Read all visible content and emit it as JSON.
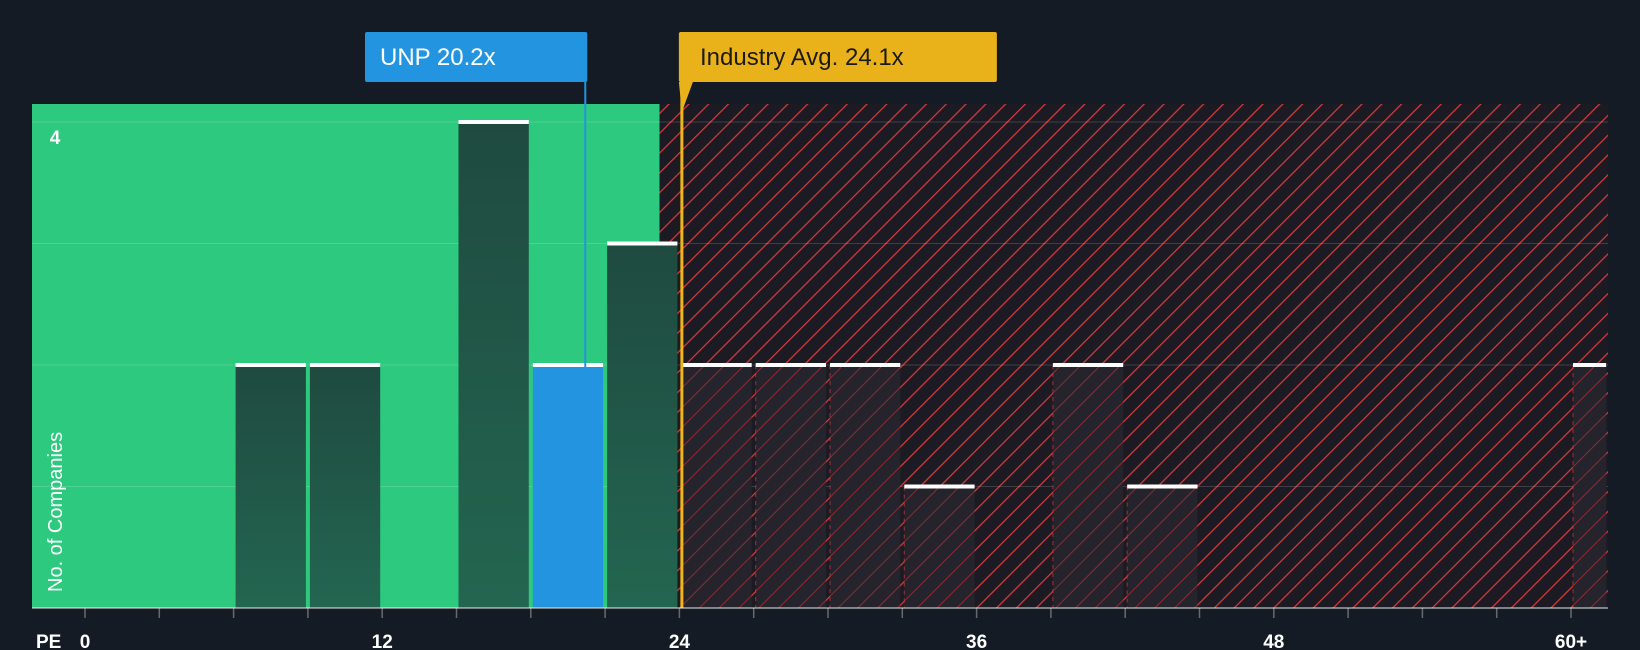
{
  "chart_data": {
    "type": "bar",
    "title": "",
    "xlabel": "PE",
    "ylabel": "No. of Companies",
    "x_ticks": [
      "0",
      "12",
      "24",
      "36",
      "48",
      "60+"
    ],
    "x_tick_values": [
      0,
      12,
      24,
      36,
      48,
      60
    ],
    "x_range": [
      -2,
      61.5
    ],
    "y_ticks": [
      "4"
    ],
    "y_tick_values": [
      4
    ],
    "y_gridlines": [
      1,
      2,
      3,
      4
    ],
    "ylim": [
      0,
      4.15
    ],
    "bin_width": 3,
    "bins": [
      {
        "start": 6,
        "end": 9,
        "value": 2
      },
      {
        "start": 9,
        "end": 12,
        "value": 2
      },
      {
        "start": 15,
        "end": 18,
        "value": 4
      },
      {
        "start": 18,
        "end": 21,
        "value": 2,
        "highlight": true
      },
      {
        "start": 21,
        "end": 24,
        "value": 3
      },
      {
        "start": 24,
        "end": 27,
        "value": 2
      },
      {
        "start": 27,
        "end": 30,
        "value": 2
      },
      {
        "start": 30,
        "end": 33,
        "value": 2
      },
      {
        "start": 33,
        "end": 36,
        "value": 1
      },
      {
        "start": 39,
        "end": 42,
        "value": 2
      },
      {
        "start": 42,
        "end": 45,
        "value": 1
      },
      {
        "start": 60,
        "end": 61.5,
        "value": 2
      }
    ],
    "fair_zone_end": 23.2,
    "company": {
      "label": "UNP 20.2x",
      "value": 20.2
    },
    "industry": {
      "label": "Industry Avg. 24.1x",
      "value": 24.1
    },
    "colors": {
      "background": "#151b24",
      "fair_zone": "#2dc97e",
      "overvalued_zone": "#8b1e2c",
      "hatch": "#e03c3c",
      "bar_in_green": "#1f4a40",
      "bar_in_red": "#26242c",
      "bar_cap": "#ffffff",
      "highlight_bar": "#2394e0",
      "company_callout": "#2394e0",
      "industry_callout": "#eab21a",
      "industry_line": "#f0b41c",
      "company_line": "#2394e0"
    }
  }
}
